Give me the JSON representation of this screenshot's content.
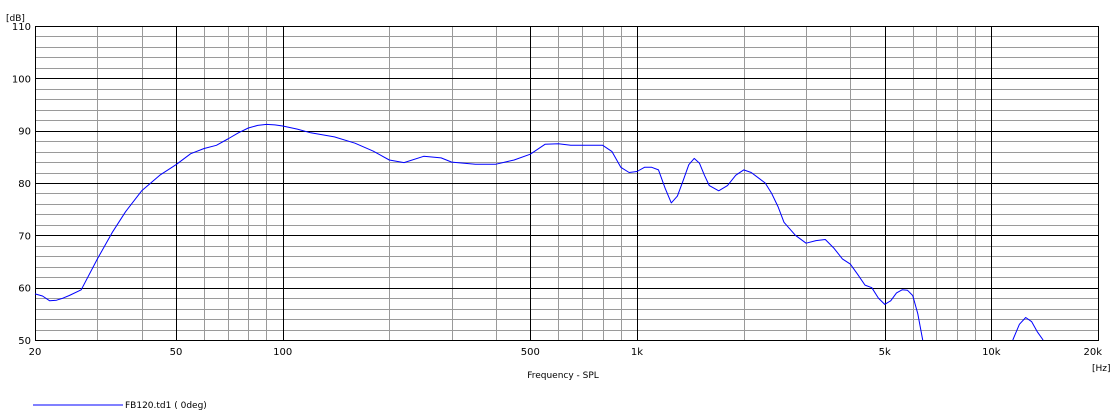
{
  "chart_data": {
    "type": "line",
    "title": "",
    "xlabel": "Frequency - SPL",
    "xunit": "[Hz]",
    "yunit": "[dB]",
    "xscale": "log",
    "xlim": [
      20,
      20000
    ],
    "ylim": [
      50,
      110
    ],
    "grid": true,
    "legend_position": "bottom-left",
    "x_ticks": [
      {
        "v": 20,
        "label": "20"
      },
      {
        "v": 50,
        "label": "50"
      },
      {
        "v": 100,
        "label": "100"
      },
      {
        "v": 500,
        "label": "500"
      },
      {
        "v": 1000,
        "label": "1k"
      },
      {
        "v": 5000,
        "label": "5k"
      },
      {
        "v": 10000,
        "label": "10k"
      },
      {
        "v": 20000,
        "label": "20k"
      }
    ],
    "y_ticks": [
      {
        "v": 50,
        "label": "50"
      },
      {
        "v": 60,
        "label": "60"
      },
      {
        "v": 70,
        "label": "70"
      },
      {
        "v": 80,
        "label": "80"
      },
      {
        "v": 90,
        "label": "90"
      },
      {
        "v": 100,
        "label": "100"
      },
      {
        "v": 110,
        "label": "110"
      }
    ],
    "colors": {
      "series": "#0000ff",
      "grid_major": "#000000",
      "grid_minor": "#9a9a9a",
      "frame": "#000000"
    },
    "series": [
      {
        "name": "FB120.td1 ( 0deg)",
        "x": [
          20,
          21,
          22,
          23,
          24,
          25,
          27,
          30,
          33,
          36,
          40,
          45,
          50,
          55,
          60,
          65,
          70,
          75,
          80,
          85,
          90,
          95,
          100,
          110,
          120,
          140,
          160,
          180,
          200,
          220,
          250,
          280,
          300,
          350,
          400,
          450,
          500,
          550,
          600,
          650,
          700,
          750,
          800,
          850,
          900,
          950,
          1000,
          1050,
          1100,
          1150,
          1200,
          1250,
          1300,
          1350,
          1400,
          1450,
          1500,
          1550,
          1600,
          1700,
          1800,
          1900,
          2000,
          2100,
          2200,
          2300,
          2400,
          2500,
          2600,
          2800,
          3000,
          3200,
          3400,
          3600,
          3800,
          4000,
          4200,
          4400,
          4600,
          4800,
          5000,
          5200,
          5400,
          5600,
          5800,
          6000,
          6200,
          6400
        ],
        "y": [
          58.8,
          58.4,
          57.5,
          57.6,
          58.0,
          58.5,
          59.6,
          65.5,
          70.5,
          74.5,
          78.5,
          81.5,
          83.5,
          85.6,
          86.6,
          87.2,
          88.4,
          89.6,
          90.5,
          91.0,
          91.2,
          91.1,
          90.9,
          90.3,
          89.6,
          88.8,
          87.6,
          86.1,
          84.4,
          83.9,
          85.1,
          84.8,
          84.0,
          83.6,
          83.6,
          84.4,
          85.5,
          87.4,
          87.5,
          87.2,
          87.2,
          87.2,
          87.2,
          86.0,
          83.0,
          82.0,
          82.2,
          83.0,
          83.0,
          82.5,
          79.0,
          76.2,
          77.5,
          80.5,
          83.5,
          84.7,
          83.8,
          81.5,
          79.5,
          78.5,
          79.5,
          81.5,
          82.5,
          82.0,
          81.0,
          80.0,
          78.0,
          75.5,
          72.5,
          70.0,
          68.5,
          69.0,
          69.2,
          67.5,
          65.5,
          64.5,
          62.5,
          60.5,
          60.0,
          58.0,
          56.8,
          57.5,
          59.0,
          59.6,
          59.5,
          58.5,
          55.0,
          50.0
        ]
      },
      {
        "name": "",
        "x": [
          11500,
          12000,
          12500,
          13000,
          13500,
          14000
        ],
        "y": [
          50.0,
          53.0,
          54.3,
          53.5,
          51.5,
          50.0
        ]
      }
    ]
  }
}
